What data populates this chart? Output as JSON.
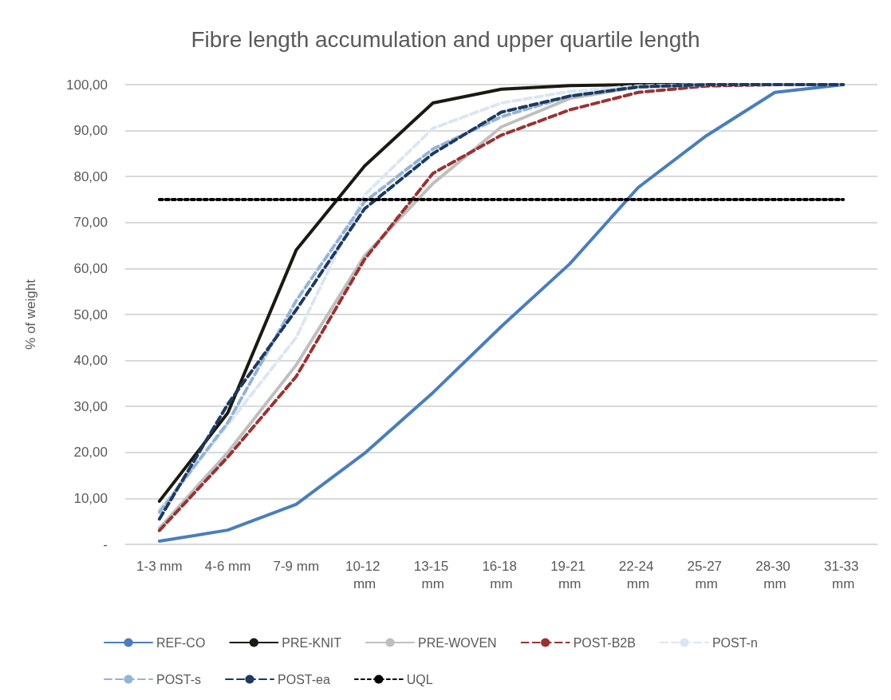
{
  "chart_data": {
    "type": "line",
    "title": "Fibre length accumulation and upper quartile length",
    "ylabel": "% of weight",
    "categories": [
      "1-3 mm",
      "4-6 mm",
      "7-9 mm",
      "10-12 mm",
      "13-15 mm",
      "16-18 mm",
      "19-21 mm",
      "22-24 mm",
      "25-27 mm",
      "28-30 mm",
      "31-33 mm"
    ],
    "ylim": [
      0,
      100
    ],
    "yticks": [
      {
        "value": 0,
        "label": "-"
      },
      {
        "value": 10,
        "label": "10,00"
      },
      {
        "value": 20,
        "label": "20,00"
      },
      {
        "value": 30,
        "label": "30,00"
      },
      {
        "value": 40,
        "label": "40,00"
      },
      {
        "value": 50,
        "label": "50,00"
      },
      {
        "value": 60,
        "label": "60,00"
      },
      {
        "value": 70,
        "label": "70,00"
      },
      {
        "value": 80,
        "label": "80,00"
      },
      {
        "value": 90,
        "label": "90,00"
      },
      {
        "value": 100,
        "label": "100,00"
      }
    ],
    "grid": "y",
    "legend": "bottom",
    "marker": "none",
    "line_style": "solid",
    "series": [
      {
        "name": "REF-CO",
        "color": "#4a7ebb",
        "values": [
          0.7,
          3.1,
          8.7,
          19.8,
          33,
          47.4,
          61,
          77.6,
          88.9,
          98.3,
          100
        ]
      },
      {
        "name": "PRE-KNIT",
        "color": "#1a1a12",
        "values": [
          9.4,
          28.6,
          64,
          82.3,
          96,
          99,
          99.8,
          100,
          100,
          100,
          100
        ]
      },
      {
        "name": "PRE-WOVEN",
        "color": "#bfbfbf",
        "values": [
          3.5,
          20,
          39,
          62.8,
          78.5,
          90.8,
          97,
          99.5,
          100,
          100,
          100
        ]
      },
      {
        "name": "POST-B2B",
        "color": "#993333",
        "line_style": "dashed",
        "values": [
          3,
          19,
          36.5,
          62,
          80.7,
          89,
          94.5,
          98.3,
          99.7,
          100,
          100
        ]
      },
      {
        "name": "POST-n",
        "color": "#dce6f2",
        "line_style": "dashed",
        "values": [
          7.5,
          26,
          45,
          76,
          90.5,
          96,
          98.5,
          99.7,
          100,
          100,
          100
        ]
      },
      {
        "name": "POST-s",
        "color": "#95b3d7",
        "line_style": "dashed",
        "values": [
          7,
          26.5,
          53,
          74.5,
          86,
          93,
          97.5,
          99.5,
          100,
          100,
          100
        ]
      },
      {
        "name": "POST-ea",
        "color": "#1f3a5f",
        "line_style": "dashed",
        "values": [
          5.5,
          30.5,
          51,
          73,
          85,
          94,
          97.5,
          99.5,
          100,
          100,
          100
        ]
      },
      {
        "name": "UQL",
        "color": "#000000",
        "line_style": "dotted",
        "values": [
          75,
          75,
          75,
          75,
          75,
          75,
          75,
          75,
          75,
          75,
          75
        ]
      }
    ]
  }
}
